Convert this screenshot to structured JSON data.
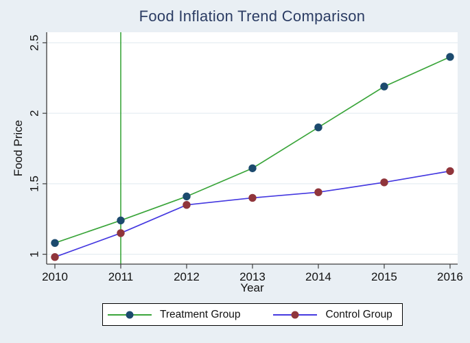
{
  "title": "Food Inflation Trend Comparison",
  "colors": {
    "background": "#e9eff4",
    "plot_bg": "#ffffff",
    "grid": "#dfe9ef",
    "axis": "#3c3c3c",
    "title_color": "#2b3c63",
    "treatment_line": "#3aa53a",
    "treatment_marker": "#1c4a6e",
    "control_line": "#4438e0",
    "control_marker": "#90353b",
    "vline": "#3aa53a"
  },
  "chart_data": {
    "type": "line",
    "title": "Food Inflation Trend Comparison",
    "xlabel": "Year",
    "ylabel": "Food Price",
    "x": [
      2010,
      2011,
      2012,
      2013,
      2014,
      2015,
      2016
    ],
    "series": [
      {
        "name": "Treatment Group",
        "values": [
          1.08,
          1.24,
          1.41,
          1.61,
          1.9,
          2.19,
          2.4
        ],
        "line_color": "#3aa53a",
        "marker_color": "#1c4a6e"
      },
      {
        "name": "Control Group",
        "values": [
          0.98,
          1.15,
          1.35,
          1.4,
          1.44,
          1.51,
          1.59
        ],
        "line_color": "#4438e0",
        "marker_color": "#90353b"
      }
    ],
    "vline": {
      "x": 2011,
      "color": "#3aa53a"
    },
    "xticks": [
      2010,
      2011,
      2012,
      2013,
      2014,
      2015,
      2016
    ],
    "yticks": [
      1,
      1.5,
      2,
      2.5
    ],
    "xlim": [
      2009.875,
      2016.115
    ],
    "ylim": [
      0.93,
      2.575
    ],
    "grid": "horizontal",
    "legend_position": "bottom"
  },
  "legend": {
    "entries": [
      {
        "label": "Treatment Group"
      },
      {
        "label": "Control Group"
      }
    ]
  }
}
